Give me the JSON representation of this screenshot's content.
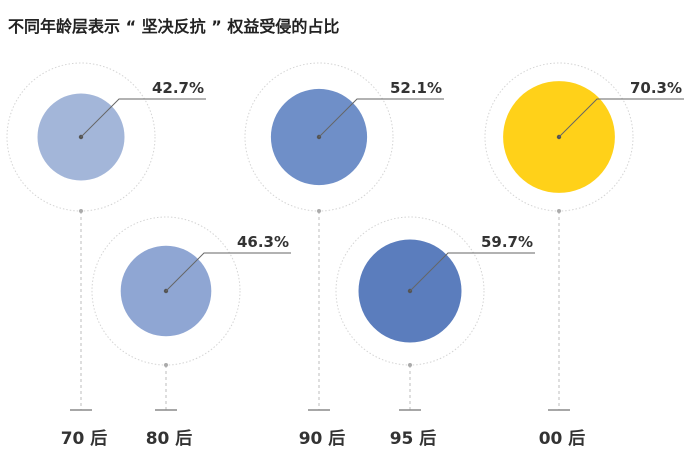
{
  "chart_data": {
    "type": "bubble",
    "title": "不同年龄层表示 “ 坚决反抗 ” 权益受侵的占比",
    "categories": [
      "70后",
      "80后",
      "90后",
      "95后",
      "00后"
    ],
    "category_labels": [
      "70 后",
      "80 后",
      "90 后",
      "95 后",
      "00 后"
    ],
    "values": [
      42.7,
      46.3,
      52.1,
      59.7,
      70.3
    ],
    "value_labels": [
      "42.7%",
      "46.3%",
      "52.1%",
      "59.7%",
      "70.3%"
    ],
    "value_max": 100,
    "colors": [
      "#a3b6d9",
      "#8fa6d3",
      "#6f8fc8",
      "#5b7dbd",
      "#ffd119"
    ],
    "outline_color": "#d4d4d4",
    "leader_color": "#666666",
    "grid": false
  }
}
